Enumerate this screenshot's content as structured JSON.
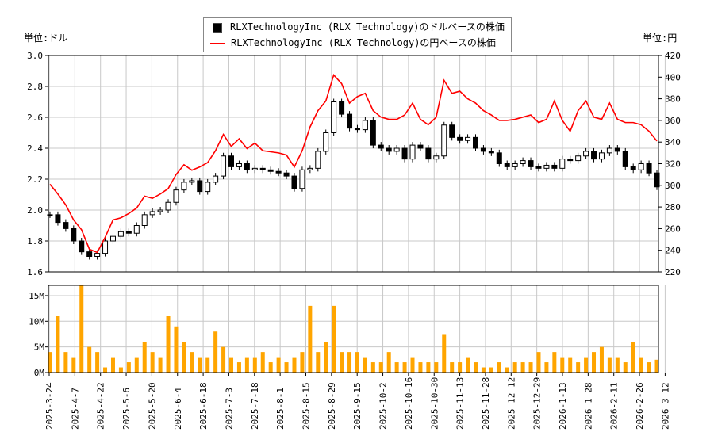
{
  "units": {
    "left": "単位:ドル",
    "right": "単位:円"
  },
  "legend": [
    {
      "label": "RLXTechnologyInc (RLX Technology)のドルベースの株価",
      "color": "#000000",
      "marker": "square"
    },
    {
      "label": "RLXTechnologyInc (RLX Technology)の円ベースの株価",
      "color": "#ff0000",
      "marker": "line"
    }
  ],
  "chart_data": [
    {
      "type": "candlestick+line",
      "left_axis": {
        "ylim": [
          1.6,
          3.0
        ],
        "ticks": [
          "1.6",
          "1.8",
          "2.0",
          "2.2",
          "2.4",
          "2.6",
          "2.8",
          "3.0"
        ]
      },
      "right_axis": {
        "ylim": [
          220,
          420
        ],
        "ticks": [
          "220",
          "240",
          "260",
          "280",
          "300",
          "320",
          "340",
          "360",
          "380",
          "400",
          "420"
        ]
      },
      "grid": true,
      "legend_position": "top-center",
      "x_tick_labels": [
        "2025-3-24",
        "2025-4-7",
        "2025-4-22",
        "2025-5-6",
        "2025-5-20",
        "2025-6-4",
        "2025-6-18",
        "2025-7-3",
        "2025-7-18",
        "2025-8-1",
        "2025-8-15",
        "2025-8-29",
        "2025-9-15",
        "2025-10-2",
        "2025-10-16",
        "2025-10-30",
        "2025-11-13",
        "2025-11-28",
        "2025-12-12",
        "2025-12-29",
        "2026-1-13",
        "2026-1-28",
        "2026-2-11",
        "2026-2-26",
        "2026-3-12"
      ],
      "series": [
        {
          "name": "RLXTechnologyInc (RLX Technology)のドルベースの株価",
          "axis": "left",
          "color": "#000000",
          "close": [
            1.97,
            1.92,
            1.88,
            1.8,
            1.73,
            1.7,
            1.72,
            1.8,
            1.83,
            1.86,
            1.85,
            1.9,
            1.97,
            1.99,
            2.0,
            2.05,
            2.13,
            2.18,
            2.19,
            2.12,
            2.18,
            2.22,
            2.35,
            2.28,
            2.3,
            2.26,
            2.27,
            2.26,
            2.25,
            2.24,
            2.22,
            2.14,
            2.26,
            2.27,
            2.38,
            2.5,
            2.7,
            2.62,
            2.53,
            2.52,
            2.58,
            2.42,
            2.4,
            2.38,
            2.4,
            2.33,
            2.42,
            2.4,
            2.33,
            2.35,
            2.55,
            2.47,
            2.45,
            2.47,
            2.4,
            2.38,
            2.37,
            2.3,
            2.28,
            2.3,
            2.32,
            2.28,
            2.27,
            2.29,
            2.27,
            2.33,
            2.32,
            2.35,
            2.38,
            2.33,
            2.37,
            2.4,
            2.38,
            2.28,
            2.26,
            2.3,
            2.24,
            2.15
          ]
        },
        {
          "name": "RLXTechnologyInc (RLX Technology)の円ベースの株価",
          "axis": "right",
          "color": "#ff0000",
          "close": [
            301,
            292,
            282,
            268,
            259,
            241,
            238,
            252,
            268,
            270,
            274,
            279,
            290,
            288,
            292,
            297,
            310,
            319,
            314,
            317,
            321,
            332,
            347,
            336,
            343,
            334,
            339,
            332,
            331,
            330,
            328,
            317,
            332,
            354,
            369,
            378,
            402,
            394,
            376,
            382,
            385,
            369,
            363,
            361,
            361,
            365,
            376,
            361,
            356,
            363,
            397,
            385,
            387,
            380,
            376,
            369,
            365,
            360,
            360,
            361,
            363,
            365,
            358,
            361,
            378,
            360,
            350,
            369,
            378,
            363,
            361,
            376,
            361,
            358,
            358,
            356,
            350,
            341
          ]
        }
      ]
    },
    {
      "type": "bar",
      "ylim": [
        0,
        17
      ],
      "ticks": [
        "0M",
        "5M",
        "10M",
        "15M"
      ],
      "color": "#ffa500",
      "values_millions": [
        4,
        11,
        4,
        3,
        17,
        5,
        4,
        1,
        3,
        1,
        2,
        3,
        6,
        4,
        3,
        11,
        9,
        6,
        4,
        3,
        3,
        8,
        5,
        3,
        2,
        3,
        3,
        4,
        2,
        3,
        2,
        3,
        4,
        13,
        4,
        6,
        13,
        4,
        4,
        4,
        3,
        2,
        2,
        4,
        2,
        2,
        3,
        2,
        2,
        2,
        7.5,
        2,
        2,
        3,
        2,
        1,
        1,
        2,
        1,
        2,
        2,
        2,
        4,
        2,
        4,
        3,
        3,
        2,
        3,
        4,
        5,
        3,
        3,
        2,
        6,
        3,
        2,
        2.5
      ]
    }
  ]
}
